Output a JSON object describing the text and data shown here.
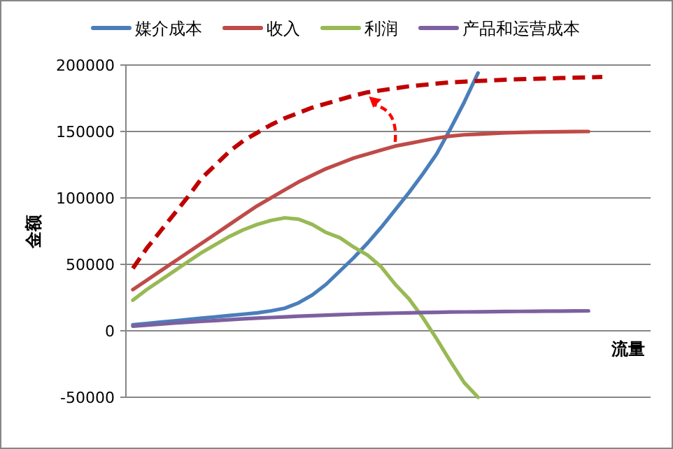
{
  "chart_data": {
    "type": "line",
    "xlabel": "流量",
    "ylabel": "金额",
    "categories": [
      null,
      null,
      null,
      null,
      null,
      null,
      null,
      null,
      null,
      null,
      null,
      null,
      null,
      null,
      null,
      null,
      null,
      null,
      null,
      null,
      null,
      null,
      null,
      null,
      null,
      null,
      null,
      null,
      null,
      null,
      null,
      null,
      null,
      null,
      null,
      null,
      null,
      null
    ],
    "ylim": [
      -50000,
      200000
    ],
    "yticks": [
      -50000,
      0,
      50000,
      100000,
      150000,
      200000
    ],
    "grid": "y",
    "legend": "top",
    "tick_labels": "y",
    "marker": "none",
    "series": [
      {
        "name": "媒介成本",
        "color": "#4a7ebb",
        "line_style": "solid",
        "values": [
          4500,
          5500,
          6500,
          7500,
          8500,
          9500,
          10500,
          11500,
          12500,
          13500,
          15000,
          17000,
          21000,
          27000,
          35000,
          45000,
          55000,
          66000,
          78000,
          91000,
          104000,
          118000,
          133000,
          152000,
          172000,
          194000,
          null,
          null,
          null,
          null,
          null,
          null,
          null,
          null,
          null,
          null,
          null,
          null
        ]
      },
      {
        "name": "收入",
        "color": "#be4b48",
        "line_style": "solid",
        "values": [
          31000,
          38000,
          45000,
          52000,
          59000,
          66000,
          73000,
          80000,
          87000,
          94000,
          100000,
          106000,
          112000,
          117000,
          122000,
          126000,
          130000,
          133000,
          136000,
          139000,
          141000,
          143000,
          145000,
          146500,
          147500,
          148000,
          148500,
          149000,
          149300,
          149500,
          149700,
          149800,
          149900,
          150000,
          null,
          null,
          null,
          null
        ]
      },
      {
        "name": "利润",
        "color": "#98b954",
        "line_style": "solid",
        "values": [
          23000,
          31000,
          38000,
          45000,
          52000,
          59000,
          65000,
          71000,
          76000,
          80000,
          83000,
          85000,
          84000,
          80000,
          74000,
          70000,
          63000,
          57000,
          48000,
          35000,
          24000,
          10000,
          -6000,
          -23000,
          -39000,
          -50000,
          null,
          null,
          null,
          null,
          null,
          null,
          null,
          null,
          null,
          null,
          null,
          null
        ]
      },
      {
        "name": "产品和运营成本",
        "color": "#7d60a0",
        "line_style": "solid",
        "values": [
          3500,
          4300,
          5000,
          5800,
          6500,
          7100,
          7700,
          8400,
          9000,
          9500,
          10000,
          10500,
          11000,
          11400,
          11800,
          12200,
          12500,
          12800,
          13100,
          13300,
          13500,
          13700,
          13900,
          14100,
          14200,
          14300,
          14400,
          14500,
          14600,
          14700,
          14800,
          14850,
          14900,
          15000,
          null,
          null,
          null,
          null
        ]
      },
      {
        "color": "#c00000",
        "line_style": "dashed",
        "values": [
          47000,
          62000,
          75000,
          88000,
          101000,
          115000,
          125000,
          135000,
          143000,
          149000,
          155000,
          160000,
          164000,
          168000,
          171000,
          174000,
          177000,
          179500,
          181000,
          182500,
          184000,
          185000,
          186000,
          187000,
          187500,
          188000,
          188500,
          189000,
          189300,
          189600,
          189900,
          190200,
          190500,
          190700,
          191000,
          null,
          null,
          null
        ]
      }
    ]
  }
}
